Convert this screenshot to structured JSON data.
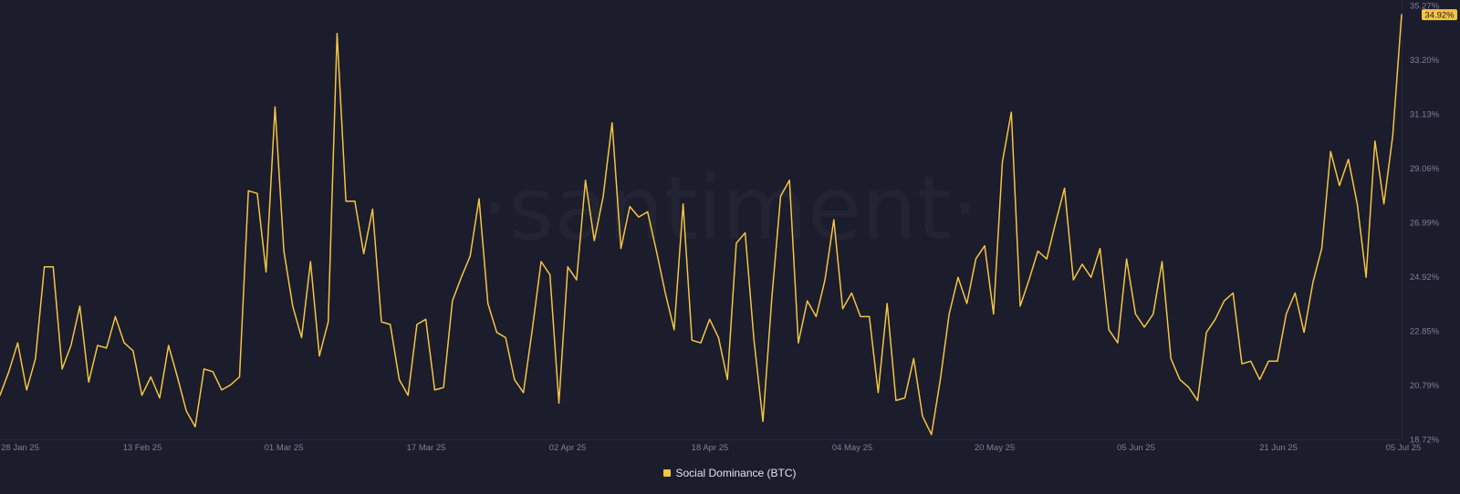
{
  "watermark": "·santiment·",
  "colors": {
    "background": "#1b1c2c",
    "line": "#f4c542",
    "axis_text": "#7e8096",
    "grid": "#26283a",
    "badge_text": "#1b1c2c"
  },
  "legend": {
    "label": "Social Dominance (BTC)",
    "placement": "bottom-center"
  },
  "chart_data": {
    "type": "line",
    "x_tick_labels": [
      "28 Jan 25",
      "13 Feb 25",
      "01 Mar 25",
      "17 Mar 25",
      "02 Apr 25",
      "18 Apr 25",
      "04 May 25",
      "20 May 25",
      "05 Jun 25",
      "21 Jun 25",
      "05 Jul 25"
    ],
    "x_range": [
      "2025-01-28",
      "2025-07-05"
    ],
    "y_tick_labels": [
      "35.27%",
      "33.20%",
      "31.13%",
      "29.06%",
      "26.99%",
      "24.92%",
      "22.85%",
      "20.79%",
      "18.72%"
    ],
    "ylim": [
      18.72,
      35.27
    ],
    "y_axis_side": "right",
    "grid": false,
    "current_value_label": "34.92%",
    "series": [
      {
        "name": "Social Dominance (BTC)",
        "values": [
          20.4,
          21.3,
          22.4,
          20.6,
          21.8,
          25.3,
          25.3,
          21.4,
          22.3,
          23.8,
          20.9,
          22.3,
          22.2,
          23.4,
          22.4,
          22.1,
          20.4,
          21.1,
          20.3,
          22.3,
          21.1,
          19.8,
          19.2,
          21.4,
          21.3,
          20.6,
          20.8,
          21.1,
          28.2,
          28.1,
          25.1,
          31.4,
          25.9,
          23.8,
          22.6,
          25.5,
          21.9,
          23.2,
          34.2,
          27.8,
          27.8,
          25.8,
          27.5,
          23.2,
          23.1,
          21.0,
          20.4,
          23.1,
          23.3,
          20.6,
          20.7,
          24.0,
          24.9,
          25.7,
          27.9,
          23.9,
          22.8,
          22.6,
          21.0,
          20.5,
          22.9,
          25.5,
          25.0,
          20.1,
          25.3,
          24.8,
          28.6,
          26.3,
          28.0,
          30.8,
          26.0,
          27.6,
          27.2,
          27.4,
          25.9,
          24.3,
          22.9,
          27.7,
          22.5,
          22.4,
          23.3,
          22.6,
          21.0,
          26.2,
          26.6,
          22.5,
          19.4,
          24.1,
          28.0,
          28.6,
          22.4,
          24.0,
          23.4,
          24.8,
          27.1,
          23.7,
          24.3,
          23.4,
          23.4,
          20.5,
          23.9,
          20.2,
          20.3,
          21.8,
          19.6,
          18.9,
          21.0,
          23.5,
          24.9,
          23.9,
          25.6,
          26.1,
          23.5,
          29.3,
          31.2,
          23.8,
          24.8,
          25.9,
          25.6,
          27.0,
          28.3,
          24.8,
          25.4,
          24.9,
          26.0,
          22.9,
          22.4,
          25.6,
          23.5,
          23.0,
          23.5,
          25.5,
          21.8,
          21.0,
          20.7,
          20.2,
          22.8,
          23.3,
          24.0,
          24.3,
          21.6,
          21.7,
          21.0,
          21.7,
          21.7,
          23.5,
          24.3,
          22.8,
          24.7,
          26.0,
          29.7,
          28.4,
          29.4,
          27.7,
          24.9,
          30.1,
          27.7,
          30.3,
          34.92
        ]
      }
    ]
  }
}
